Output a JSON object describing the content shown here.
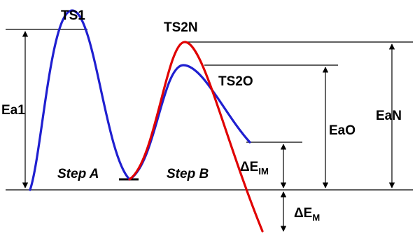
{
  "labels": {
    "ts1": "TS1",
    "ts2n": "TS2N",
    "ts2o": "TS2O",
    "ea1": "Ea1",
    "eao": "EaO",
    "ean": "EaN",
    "step_a": "Step A",
    "step_b": "Step B",
    "delta": "ΔE",
    "delta_im_sub": "IM",
    "delta_m_sub": "M"
  },
  "colors": {
    "blue_path": "#1f1fd0",
    "red_path": "#e00000",
    "lines": "#000000"
  }
}
